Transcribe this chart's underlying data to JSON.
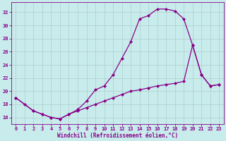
{
  "xlabel": "Windchill (Refroidissement éolien,°C)",
  "bg_color": "#c8ecec",
  "line_color": "#880088",
  "grid_color": "#b0cccc",
  "xlim": [
    -0.5,
    23.5
  ],
  "ylim": [
    15.0,
    33.5
  ],
  "xticks": [
    0,
    1,
    2,
    3,
    4,
    5,
    6,
    7,
    8,
    9,
    10,
    11,
    12,
    13,
    14,
    15,
    16,
    17,
    18,
    19,
    20,
    21,
    22,
    23
  ],
  "yticks": [
    16,
    18,
    20,
    22,
    24,
    26,
    28,
    30,
    32
  ],
  "line1_x": [
    0,
    1,
    2,
    3,
    4,
    5,
    6,
    7,
    8,
    9,
    10,
    11,
    12,
    13,
    14,
    15,
    16,
    17,
    18,
    19,
    20,
    21,
    22,
    23
  ],
  "line1_y": [
    19.0,
    18.0,
    17.0,
    16.5,
    16.0,
    15.8,
    16.5,
    17.2,
    18.5,
    20.2,
    20.8,
    22.5,
    25.0,
    27.5,
    31.0,
    31.5,
    32.5,
    32.5,
    32.2,
    31.0,
    27.0,
    22.5,
    20.8,
    21.0
  ],
  "line2_x": [
    0,
    2,
    3,
    4,
    5,
    6,
    7,
    8,
    9,
    10,
    11,
    12,
    13,
    14,
    15,
    16,
    17,
    18,
    19,
    20,
    21,
    22,
    23
  ],
  "line2_y": [
    19.0,
    17.0,
    16.5,
    16.0,
    15.8,
    16.5,
    17.0,
    17.5,
    18.0,
    18.5,
    19.0,
    19.5,
    20.0,
    20.2,
    20.5,
    20.8,
    21.0,
    21.2,
    21.5,
    27.0,
    22.5,
    20.8,
    21.0
  ],
  "xlabel_fontsize": 5.5,
  "tick_fontsize": 5,
  "linewidth": 0.9,
  "markersize": 2.2
}
